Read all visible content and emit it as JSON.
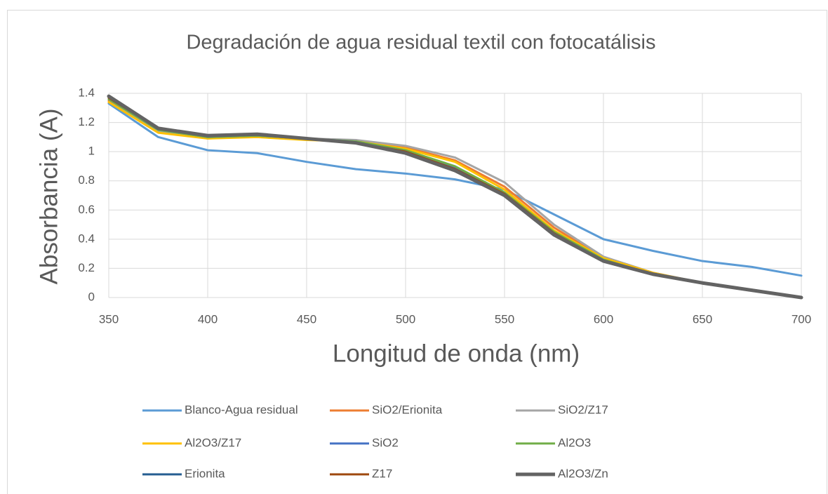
{
  "chart_data": {
    "type": "line",
    "title": "Degradación de agua residual textil con fotocatálisis",
    "x_label": "Longitud de onda (nm)",
    "y_label": "Absorbancia (A)",
    "x": [
      350,
      375,
      400,
      425,
      450,
      475,
      500,
      525,
      550,
      575,
      600,
      625,
      650,
      675,
      700
    ],
    "series": [
      {
        "name": "Blanco-Agua residual",
        "color": "#5b9bd5",
        "values": [
          1.33,
          1.1,
          1.01,
          0.99,
          0.93,
          0.88,
          0.85,
          0.81,
          0.74,
          0.57,
          0.4,
          0.32,
          0.25,
          0.21,
          0.15
        ]
      },
      {
        "name": "SiO2/Erionita",
        "color": "#ed7d31",
        "values": [
          1.35,
          1.14,
          1.1,
          1.12,
          1.09,
          1.07,
          1.03,
          0.94,
          0.76,
          0.48,
          0.27,
          0.17,
          0.1,
          0.05,
          0.0
        ]
      },
      {
        "name": "SiO2/Z17",
        "color": "#a5a5a5",
        "values": [
          1.34,
          1.14,
          1.09,
          1.11,
          1.09,
          1.08,
          1.04,
          0.96,
          0.79,
          0.5,
          0.28,
          0.17,
          0.1,
          0.05,
          0.0
        ]
      },
      {
        "name": "Al2O3/Z17",
        "color": "#ffc000",
        "values": [
          1.34,
          1.13,
          1.09,
          1.1,
          1.08,
          1.07,
          1.02,
          0.93,
          0.74,
          0.46,
          0.27,
          0.17,
          0.1,
          0.05,
          0.0
        ]
      },
      {
        "name": "SiO2",
        "color": "#4472c4",
        "values": [
          1.36,
          1.15,
          1.1,
          1.11,
          1.09,
          1.07,
          1.0,
          0.89,
          0.71,
          0.44,
          0.25,
          0.16,
          0.1,
          0.05,
          0.0
        ]
      },
      {
        "name": "Al2O3",
        "color": "#70ad47",
        "values": [
          1.36,
          1.15,
          1.1,
          1.11,
          1.09,
          1.07,
          1.01,
          0.9,
          0.72,
          0.45,
          0.26,
          0.16,
          0.1,
          0.05,
          0.0
        ]
      },
      {
        "name": "Erionita",
        "color": "#255e91",
        "values": [
          1.37,
          1.16,
          1.11,
          1.12,
          1.09,
          1.06,
          1.0,
          0.88,
          0.71,
          0.44,
          0.25,
          0.16,
          0.1,
          0.05,
          0.0
        ]
      },
      {
        "name": "Z17",
        "color": "#9e480e",
        "values": [
          1.37,
          1.16,
          1.11,
          1.12,
          1.09,
          1.06,
          1.0,
          0.88,
          0.71,
          0.44,
          0.25,
          0.16,
          0.1,
          0.05,
          0.0
        ]
      },
      {
        "name": "Al2O3/Zn",
        "color": "#636363",
        "values": [
          1.38,
          1.16,
          1.11,
          1.12,
          1.09,
          1.06,
          0.99,
          0.87,
          0.7,
          0.43,
          0.25,
          0.16,
          0.1,
          0.05,
          0.0
        ]
      }
    ],
    "xlim": [
      350,
      700
    ],
    "xticks": [
      350,
      400,
      450,
      500,
      550,
      600,
      650,
      700
    ],
    "ylim": [
      0,
      1.4
    ],
    "yticks": [
      0,
      0.2,
      0.4,
      0.6,
      0.8,
      1,
      1.2,
      1.4
    ],
    "grid": true,
    "legend": "bottom"
  }
}
